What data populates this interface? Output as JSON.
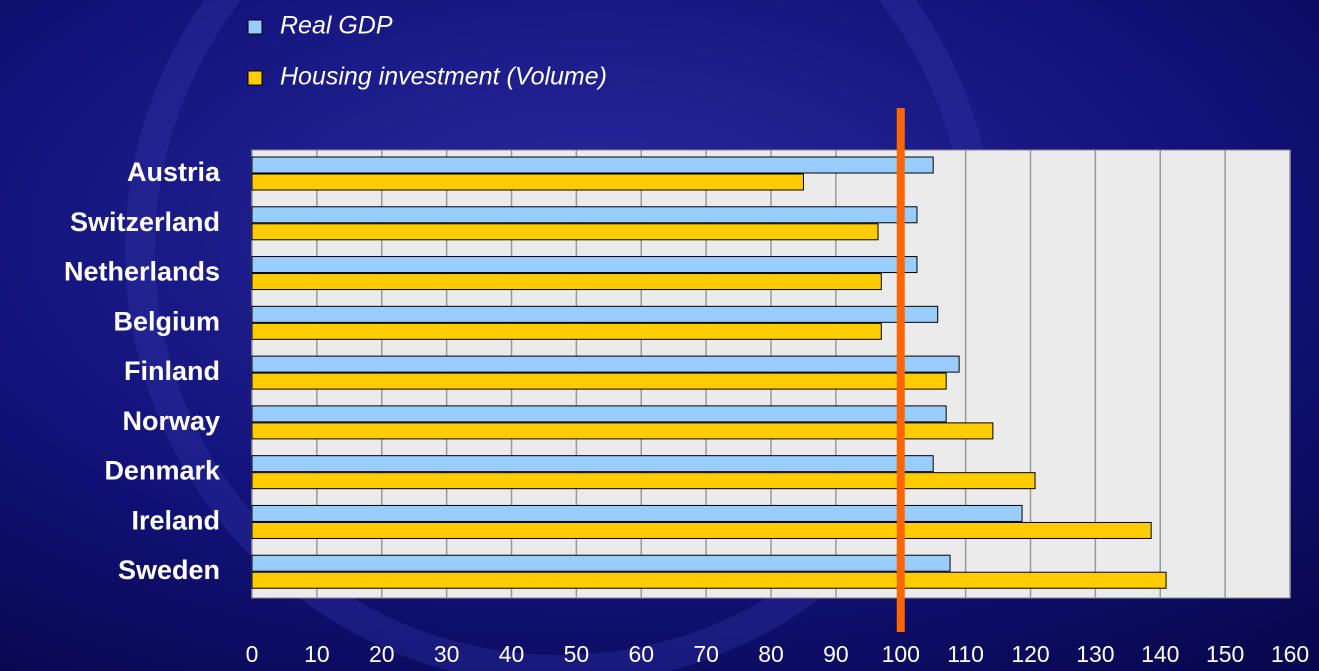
{
  "chart_data": {
    "type": "hbar",
    "categories": [
      "Austria",
      "Switzerland",
      "Netherlands",
      "Belgium",
      "Finland",
      "Norway",
      "Denmark",
      "Ireland",
      "Sweden"
    ],
    "series": [
      {
        "name": "Real GDP",
        "color": "#99ccff",
        "values": [
          105,
          102.5,
          102.5,
          105.7,
          109,
          107,
          105,
          118.7,
          107.6
        ]
      },
      {
        "name": "Housing investment (Volume)",
        "color": "#ffcc00",
        "values": [
          85,
          96.5,
          97,
          97,
          107,
          114.2,
          120.7,
          138.6,
          140.9
        ]
      }
    ],
    "xlim": [
      0,
      160
    ],
    "xticks": [
      0,
      10,
      20,
      30,
      40,
      50,
      60,
      70,
      80,
      90,
      100,
      110,
      120,
      130,
      140,
      150,
      160
    ],
    "grid": true,
    "reference_line": {
      "value": 100,
      "color": "#ff6600"
    }
  }
}
